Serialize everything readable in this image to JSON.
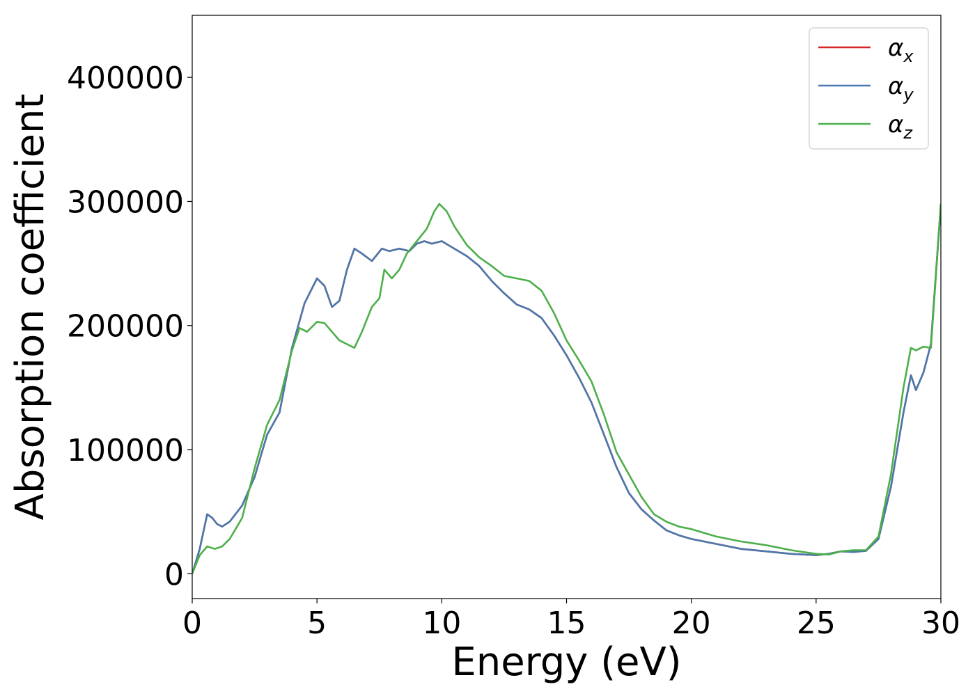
{
  "chart_data": {
    "type": "line",
    "xlabel": "Energy (eV)",
    "ylabel": "Absorption coefficient",
    "xlim": [
      0,
      30
    ],
    "ylim": [
      -20000,
      450000
    ],
    "xticks": [
      0,
      5,
      10,
      15,
      20,
      25,
      30
    ],
    "yticks": [
      0,
      100000,
      200000,
      300000,
      400000
    ],
    "grid": false,
    "legend_position": "top-right",
    "series": [
      {
        "name": "α",
        "subscript": "x",
        "color": "#d62728",
        "x": [
          0,
          0.3,
          0.6,
          0.8,
          1.0,
          1.2,
          1.5,
          2.0,
          2.5,
          3.0,
          3.5,
          4.0,
          4.5,
          5.0,
          5.3,
          5.6,
          5.9,
          6.2,
          6.5,
          6.8,
          7.2,
          7.6,
          7.9,
          8.3,
          8.7,
          9.0,
          9.3,
          9.6,
          10.0,
          10.5,
          11.0,
          11.5,
          12.0,
          12.5,
          13.0,
          13.5,
          14.0,
          14.5,
          15.0,
          15.5,
          16.0,
          16.5,
          17.0,
          17.5,
          18.0,
          18.5,
          19.0,
          19.5,
          20.0,
          21.0,
          22.0,
          23.0,
          24.0,
          25.0,
          25.5,
          26.0,
          26.5,
          27.0,
          27.5,
          28.0,
          28.5,
          28.8,
          29.0,
          29.3,
          29.6,
          30.0
        ],
        "y": [
          0,
          20000,
          48000,
          45000,
          40000,
          38000,
          42000,
          55000,
          78000,
          112000,
          130000,
          182000,
          218000,
          238000,
          232000,
          215000,
          220000,
          245000,
          262000,
          258000,
          252000,
          262000,
          260000,
          262000,
          260000,
          266000,
          268000,
          266000,
          268000,
          262000,
          256000,
          248000,
          236000,
          226000,
          217000,
          213000,
          206000,
          192000,
          176000,
          158000,
          138000,
          112000,
          86000,
          65000,
          52000,
          43000,
          35000,
          31000,
          28000,
          24000,
          20000,
          18000,
          16000,
          15000,
          16000,
          18000,
          17500,
          18500,
          28000,
          70000,
          130000,
          160000,
          148000,
          162000,
          185000,
          298000
        ]
      },
      {
        "name": "α",
        "subscript": "y",
        "color": "#4a78ad",
        "x": [
          0,
          0.3,
          0.6,
          0.8,
          1.0,
          1.2,
          1.5,
          2.0,
          2.5,
          3.0,
          3.5,
          4.0,
          4.5,
          5.0,
          5.3,
          5.6,
          5.9,
          6.2,
          6.5,
          6.8,
          7.2,
          7.6,
          7.9,
          8.3,
          8.7,
          9.0,
          9.3,
          9.6,
          10.0,
          10.5,
          11.0,
          11.5,
          12.0,
          12.5,
          13.0,
          13.5,
          14.0,
          14.5,
          15.0,
          15.5,
          16.0,
          16.5,
          17.0,
          17.5,
          18.0,
          18.5,
          19.0,
          19.5,
          20.0,
          21.0,
          22.0,
          23.0,
          24.0,
          25.0,
          25.5,
          26.0,
          26.5,
          27.0,
          27.5,
          28.0,
          28.5,
          28.8,
          29.0,
          29.3,
          29.6,
          30.0
        ],
        "y": [
          0,
          20000,
          48000,
          45000,
          40000,
          38000,
          42000,
          55000,
          78000,
          112000,
          130000,
          182000,
          218000,
          238000,
          232000,
          215000,
          220000,
          245000,
          262000,
          258000,
          252000,
          262000,
          260000,
          262000,
          260000,
          266000,
          268000,
          266000,
          268000,
          262000,
          256000,
          248000,
          236000,
          226000,
          217000,
          213000,
          206000,
          192000,
          176000,
          158000,
          138000,
          112000,
          86000,
          65000,
          52000,
          43000,
          35000,
          31000,
          28000,
          24000,
          20000,
          18000,
          16000,
          15000,
          16000,
          18000,
          17500,
          18500,
          28000,
          70000,
          130000,
          160000,
          148000,
          162000,
          185000,
          298000
        ]
      },
      {
        "name": "α",
        "subscript": "z",
        "color": "#4daf4a",
        "x": [
          0,
          0.3,
          0.6,
          0.9,
          1.2,
          1.5,
          2.0,
          2.5,
          3.0,
          3.5,
          4.0,
          4.3,
          4.6,
          5.0,
          5.3,
          5.6,
          5.9,
          6.2,
          6.5,
          6.8,
          7.2,
          7.5,
          7.7,
          8.0,
          8.3,
          8.6,
          9.0,
          9.4,
          9.7,
          9.9,
          10.2,
          10.5,
          11.0,
          11.5,
          12.0,
          12.5,
          13.0,
          13.5,
          14.0,
          14.5,
          15.0,
          15.5,
          16.0,
          16.5,
          17.0,
          17.5,
          18.0,
          18.5,
          19.0,
          19.5,
          20.0,
          21.0,
          22.0,
          23.0,
          24.0,
          25.0,
          25.5,
          26.0,
          26.5,
          27.0,
          27.5,
          28.0,
          28.5,
          28.8,
          29.0,
          29.3,
          29.6,
          30.0
        ],
        "y": [
          0,
          15000,
          22000,
          20000,
          22000,
          28000,
          45000,
          85000,
          120000,
          140000,
          180000,
          198000,
          195000,
          203000,
          202000,
          195000,
          188000,
          185000,
          182000,
          195000,
          215000,
          222000,
          245000,
          238000,
          245000,
          258000,
          268000,
          278000,
          292000,
          298000,
          292000,
          280000,
          265000,
          255000,
          248000,
          240000,
          238000,
          236000,
          228000,
          210000,
          188000,
          172000,
          155000,
          128000,
          98000,
          80000,
          62000,
          48000,
          42000,
          38000,
          36000,
          30000,
          26000,
          23000,
          19000,
          16000,
          15500,
          18000,
          19000,
          19000,
          30000,
          80000,
          150000,
          182000,
          180000,
          183000,
          182000,
          298000
        ]
      }
    ]
  }
}
